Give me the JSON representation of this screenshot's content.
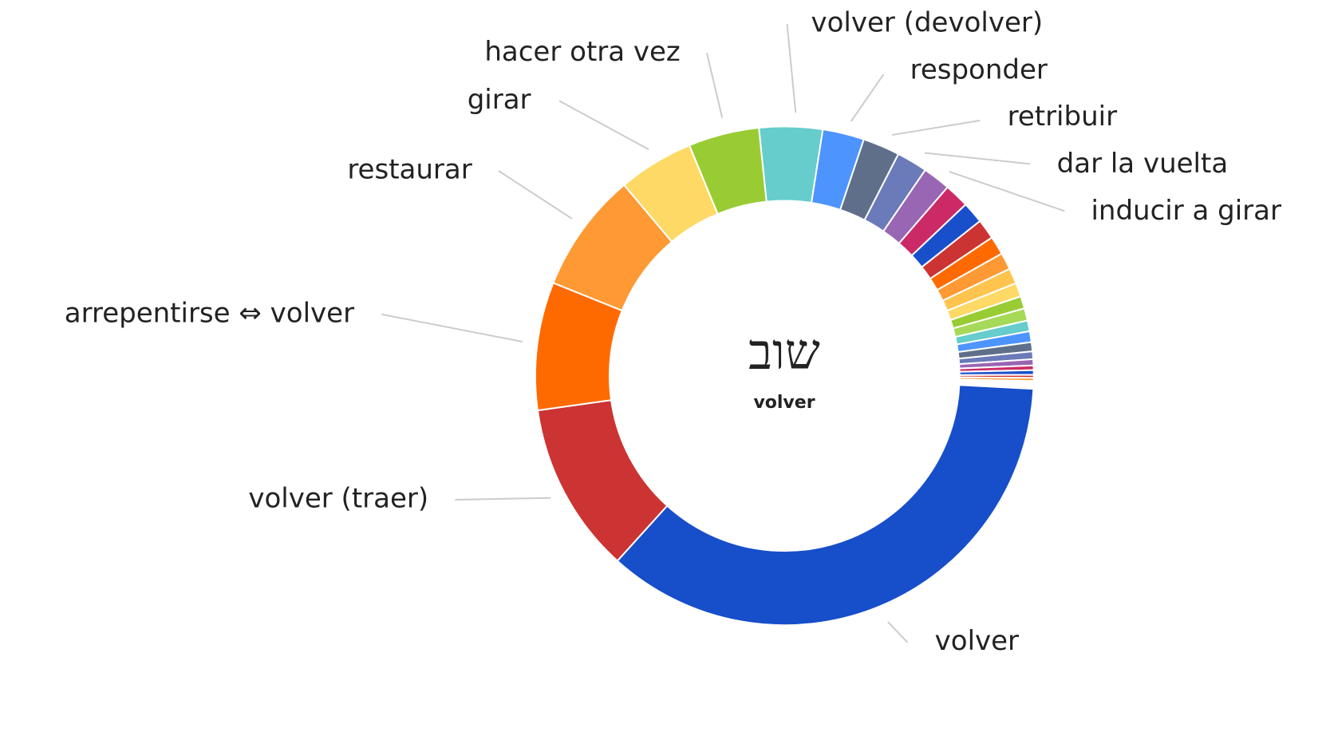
{
  "chart_data": {
    "type": "donut",
    "center_title": "שוב",
    "center_subtitle": "volver",
    "categories": [
      "volver",
      "volver (traer)",
      "arrepentirse ⇔ volver",
      "restaurar",
      "girar",
      "hacer otra vez",
      "volver (devolver)",
      "responder",
      "retribuir",
      "dar la vuelta",
      "inducir a girar",
      null,
      null,
      null,
      null,
      null,
      null,
      null,
      null,
      null,
      null,
      null,
      null,
      null,
      null,
      null,
      null,
      null,
      null,
      null,
      null
    ],
    "values": [
      35.9,
      11.1,
      8.3,
      7.8,
      4.9,
      4.6,
      4.1,
      2.7,
      2.4,
      2.0,
      1.8,
      1.6,
      1.4,
      1.3,
      1.2,
      1.1,
      1.0,
      0.9,
      0.8,
      0.8,
      0.7,
      0.7,
      0.6,
      0.5,
      0.4,
      0.3,
      0.3,
      0.2,
      0.2,
      0.1,
      0.1
    ],
    "colors": [
      "#174ec9",
      "#cc3333",
      "#ff6a00",
      "#ff9933",
      "#ffd966",
      "#99cc33",
      "#66cccc",
      "#4d94ff",
      "#5f6f8a",
      "#6b7ab8",
      "#9966b3",
      "#cc2a66",
      "#1a4fcc",
      "#cc3333",
      "#ff6a00",
      "#ff9933",
      "#ffc44d",
      "#ffd966",
      "#99cc33",
      "#a6d957",
      "#66cccc",
      "#4d94ff",
      "#5f6f8a",
      "#6b7ab8",
      "#9966b3",
      "#cc2a66",
      "#1a4fcc",
      "#cc3333",
      "#ff9933",
      "#ffd966",
      "#99cc33"
    ]
  }
}
